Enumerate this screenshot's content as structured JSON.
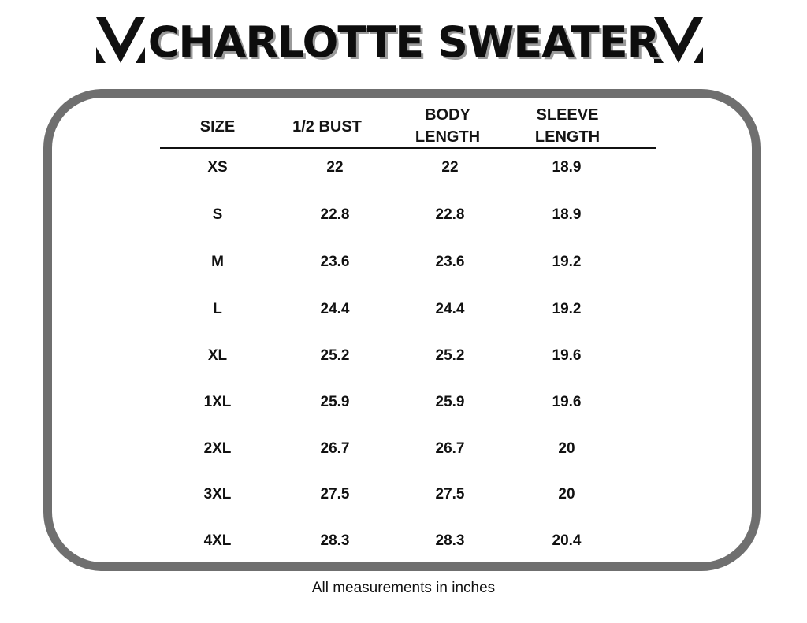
{
  "title": "CHARLOTTE SWEATER",
  "columns": [
    {
      "line1": "SIZE",
      "line2": ""
    },
    {
      "line1": "1/2 BUST",
      "line2": ""
    },
    {
      "line1": "BODY",
      "line2": "LENGTH"
    },
    {
      "line1": "SLEEVE",
      "line2": "LENGTH"
    }
  ],
  "rows": [
    [
      "XS",
      "22",
      "22",
      "18.9"
    ],
    [
      "S",
      "22.8",
      "22.8",
      "18.9"
    ],
    [
      "M",
      "23.6",
      "23.6",
      "19.2"
    ],
    [
      "L",
      "24.4",
      "24.4",
      "19.2"
    ],
    [
      "XL",
      "25.2",
      "25.2",
      "19.6"
    ],
    [
      "1XL",
      "25.9",
      "25.9",
      "19.6"
    ],
    [
      "2XL",
      "26.7",
      "26.7",
      "20"
    ],
    [
      "3XL",
      "27.5",
      "27.5",
      "20"
    ],
    [
      "4XL",
      "28.3",
      "28.3",
      "20.4"
    ]
  ],
  "footer": "All measurements in inches",
  "colors": {
    "frame": "#6f6f6f",
    "text": "#111111",
    "title_shadow": "#9a9a9a"
  },
  "icons": {
    "logo": "stylized-m-logo-icon"
  }
}
